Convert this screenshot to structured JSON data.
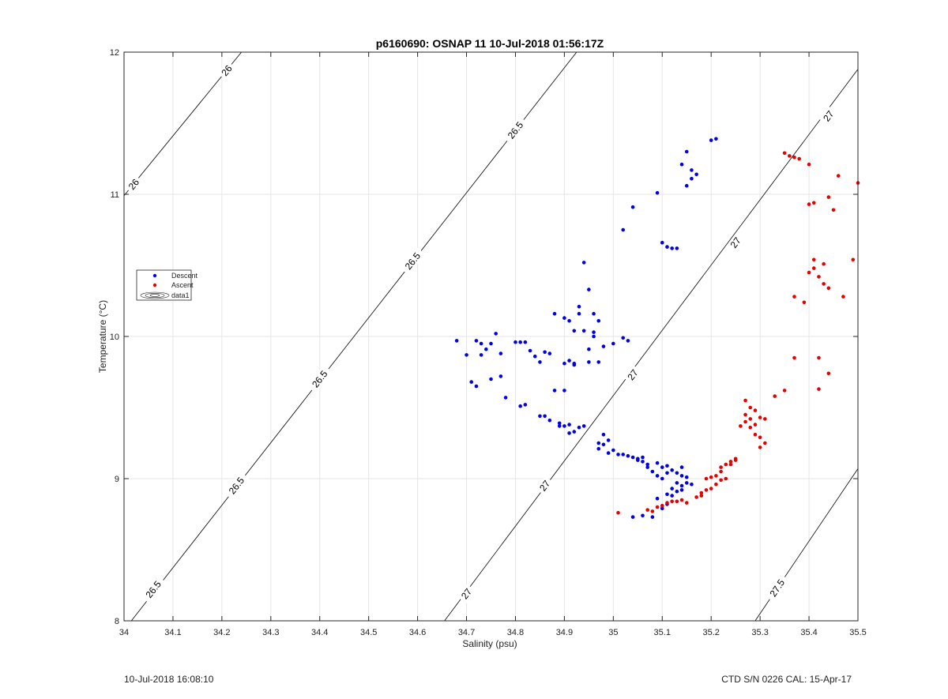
{
  "footer": {
    "left": "10-Jul-2018 16:08:10",
    "right": "CTD S/N 0226  CAL: 15-Apr-17"
  },
  "colors": {
    "descent": "#0000e6",
    "ascent": "#e60000",
    "contour": "#000000",
    "grid": "#e6e6e6",
    "axis": "#262626"
  },
  "chart_data": {
    "type": "scatter",
    "title": "p6160690: OSNAP 11 10-Jul-2018 01:56:17Z",
    "xlabel": "Salinity (psu)",
    "ylabel": "Temperature (°C)",
    "xlim": [
      34,
      35.5
    ],
    "ylim": [
      8,
      12
    ],
    "grid": true,
    "legend_position": "middle-left",
    "x_ticks": [
      "34",
      "34.1",
      "34.2",
      "34.3",
      "34.4",
      "34.5",
      "34.6",
      "34.7",
      "34.8",
      "34.9",
      "35",
      "35.1",
      "35.2",
      "35.3",
      "35.4",
      "35.5"
    ],
    "y_ticks": [
      "8",
      "9",
      "10",
      "11",
      "12"
    ],
    "legend": [
      "Descent",
      "Ascent",
      "data1"
    ],
    "contours": [
      {
        "label": "26",
        "points": [
          [
            34.0,
            10.99
          ],
          [
            34.24,
            12.0
          ]
        ],
        "label_positions": [
          [
            34.02,
            11.07
          ],
          [
            34.21,
            11.87
          ]
        ]
      },
      {
        "label": "26.5",
        "points": [
          [
            34.015,
            8.0
          ],
          [
            34.925,
            12.0
          ]
        ],
        "label_positions": [
          [
            34.06,
            8.22
          ],
          [
            34.23,
            8.95
          ],
          [
            34.4,
            9.7
          ],
          [
            34.59,
            10.53
          ],
          [
            34.8,
            11.45
          ]
        ]
      },
      {
        "label": "27",
        "points": [
          [
            34.655,
            8.0
          ],
          [
            35.5,
            11.88
          ]
        ],
        "label_positions": [
          [
            34.7,
            8.19
          ],
          [
            34.86,
            8.95
          ],
          [
            35.04,
            9.73
          ],
          [
            35.25,
            10.66
          ],
          [
            35.44,
            11.55
          ]
        ]
      },
      {
        "label": "27.5",
        "points": [
          [
            35.29,
            8.0
          ],
          [
            35.5,
            9.07
          ]
        ],
        "label_positions": [
          [
            35.335,
            8.23
          ]
        ]
      }
    ],
    "series": [
      {
        "name": "Descent",
        "color": "#0000e6",
        "points": [
          [
            34.68,
            9.97
          ],
          [
            34.7,
            9.87
          ],
          [
            34.71,
            9.68
          ],
          [
            34.72,
            9.97
          ],
          [
            34.72,
            9.65
          ],
          [
            34.73,
            9.95
          ],
          [
            34.73,
            9.87
          ],
          [
            34.74,
            9.91
          ],
          [
            34.75,
            9.7
          ],
          [
            34.75,
            9.95
          ],
          [
            34.76,
            10.02
          ],
          [
            34.77,
            9.88
          ],
          [
            34.77,
            9.72
          ],
          [
            34.78,
            9.57
          ],
          [
            34.8,
            9.96
          ],
          [
            34.81,
            9.96
          ],
          [
            34.81,
            9.51
          ],
          [
            34.82,
            9.96
          ],
          [
            34.82,
            9.52
          ],
          [
            34.83,
            9.9
          ],
          [
            34.84,
            9.86
          ],
          [
            34.85,
            9.82
          ],
          [
            34.85,
            9.44
          ],
          [
            34.86,
            9.44
          ],
          [
            34.86,
            9.89
          ],
          [
            34.87,
            9.88
          ],
          [
            34.87,
            9.41
          ],
          [
            34.88,
            9.62
          ],
          [
            34.88,
            10.16
          ],
          [
            34.89,
            9.37
          ],
          [
            34.89,
            9.39
          ],
          [
            34.9,
            10.13
          ],
          [
            34.9,
            9.81
          ],
          [
            34.9,
            9.37
          ],
          [
            34.9,
            9.62
          ],
          [
            34.91,
            10.11
          ],
          [
            34.91,
            9.32
          ],
          [
            34.91,
            9.83
          ],
          [
            34.91,
            9.38
          ],
          [
            34.92,
            10.04
          ],
          [
            34.92,
            9.81
          ],
          [
            34.92,
            9.8
          ],
          [
            34.92,
            9.33
          ],
          [
            34.93,
            10.21
          ],
          [
            34.93,
            10.16
          ],
          [
            34.93,
            9.36
          ],
          [
            34.94,
            10.52
          ],
          [
            34.94,
            10.04
          ],
          [
            34.94,
            9.37
          ],
          [
            34.95,
            10.33
          ],
          [
            34.95,
            9.82
          ],
          [
            34.95,
            9.91
          ],
          [
            34.96,
            10.16
          ],
          [
            34.96,
            10.0
          ],
          [
            34.96,
            10.03
          ],
          [
            34.97,
            10.11
          ],
          [
            34.97,
            9.82
          ],
          [
            34.97,
            9.25
          ],
          [
            34.97,
            9.21
          ],
          [
            34.98,
            9.93
          ],
          [
            34.98,
            9.31
          ],
          [
            34.98,
            9.24
          ],
          [
            34.99,
            9.27
          ],
          [
            34.99,
            9.18
          ],
          [
            35.0,
            9.95
          ],
          [
            35.0,
            9.2
          ],
          [
            35.01,
            9.17
          ],
          [
            35.02,
            10.75
          ],
          [
            35.02,
            9.99
          ],
          [
            35.02,
            9.17
          ],
          [
            35.03,
            9.97
          ],
          [
            35.03,
            9.16
          ],
          [
            35.04,
            10.91
          ],
          [
            35.04,
            9.15
          ],
          [
            35.05,
            9.14
          ],
          [
            35.05,
            9.13
          ],
          [
            35.06,
            9.15
          ],
          [
            35.06,
            9.12
          ],
          [
            35.07,
            9.1
          ],
          [
            35.07,
            9.08
          ],
          [
            35.08,
            9.05
          ],
          [
            35.09,
            11.01
          ],
          [
            35.09,
            9.11
          ],
          [
            35.09,
            9.02
          ],
          [
            35.1,
            10.66
          ],
          [
            35.1,
            9.08
          ],
          [
            35.1,
            9.0
          ],
          [
            35.11,
            10.63
          ],
          [
            35.11,
            9.09
          ],
          [
            35.11,
            9.04
          ],
          [
            35.11,
            8.89
          ],
          [
            35.12,
            10.62
          ],
          [
            35.12,
            9.06
          ],
          [
            35.12,
            8.93
          ],
          [
            35.13,
            10.62
          ],
          [
            35.13,
            9.04
          ],
          [
            35.13,
            8.97
          ],
          [
            35.14,
            11.21
          ],
          [
            35.14,
            9.08
          ],
          [
            35.14,
            9.02
          ],
          [
            35.14,
            8.95
          ],
          [
            35.15,
            11.3
          ],
          [
            35.15,
            11.06
          ],
          [
            35.15,
            9.01
          ],
          [
            35.15,
            8.97
          ],
          [
            35.16,
            11.11
          ],
          [
            35.16,
            11.17
          ],
          [
            35.16,
            8.96
          ],
          [
            35.17,
            11.14
          ],
          [
            35.2,
            11.38
          ],
          [
            35.21,
            11.39
          ],
          [
            35.04,
            8.73
          ],
          [
            35.06,
            8.74
          ],
          [
            35.08,
            8.73
          ],
          [
            35.09,
            8.86
          ],
          [
            35.1,
            8.79
          ],
          [
            35.11,
            8.82
          ],
          [
            35.12,
            8.88
          ],
          [
            35.13,
            8.91
          ],
          [
            35.14,
            8.92
          ]
        ]
      },
      {
        "name": "Ascent",
        "color": "#e60000",
        "points": [
          [
            35.01,
            8.76
          ],
          [
            35.07,
            8.78
          ],
          [
            35.08,
            8.77
          ],
          [
            35.09,
            8.8
          ],
          [
            35.1,
            8.81
          ],
          [
            35.11,
            8.83
          ],
          [
            35.12,
            8.84
          ],
          [
            35.13,
            8.84
          ],
          [
            35.14,
            8.85
          ],
          [
            35.15,
            8.83
          ],
          [
            35.17,
            8.87
          ],
          [
            35.18,
            8.88
          ],
          [
            35.18,
            8.9
          ],
          [
            35.19,
            8.92
          ],
          [
            35.19,
            9.0
          ],
          [
            35.2,
            9.01
          ],
          [
            35.2,
            8.93
          ],
          [
            35.21,
            9.02
          ],
          [
            35.21,
            8.96
          ],
          [
            35.22,
            9.05
          ],
          [
            35.22,
            8.99
          ],
          [
            35.22,
            9.08
          ],
          [
            35.23,
            9.0
          ],
          [
            35.23,
            9.1
          ],
          [
            35.24,
            9.12
          ],
          [
            35.24,
            9.1
          ],
          [
            35.25,
            9.13
          ],
          [
            35.25,
            9.14
          ],
          [
            35.26,
            9.37
          ],
          [
            35.27,
            9.4
          ],
          [
            35.27,
            9.55
          ],
          [
            35.27,
            9.45
          ],
          [
            35.28,
            9.36
          ],
          [
            35.28,
            9.5
          ],
          [
            35.28,
            9.42
          ],
          [
            35.29,
            9.31
          ],
          [
            35.29,
            9.48
          ],
          [
            35.29,
            9.38
          ],
          [
            35.3,
            9.29
          ],
          [
            35.3,
            9.43
          ],
          [
            35.3,
            9.22
          ],
          [
            35.31,
            9.25
          ],
          [
            35.31,
            9.42
          ],
          [
            35.33,
            9.58
          ],
          [
            35.35,
            9.62
          ],
          [
            35.35,
            11.29
          ],
          [
            35.36,
            11.27
          ],
          [
            35.37,
            11.26
          ],
          [
            35.37,
            10.28
          ],
          [
            35.37,
            9.85
          ],
          [
            35.38,
            11.25
          ],
          [
            35.39,
            10.24
          ],
          [
            35.4,
            11.21
          ],
          [
            35.4,
            10.93
          ],
          [
            35.4,
            10.45
          ],
          [
            35.41,
            10.94
          ],
          [
            35.41,
            10.48
          ],
          [
            35.41,
            10.54
          ],
          [
            35.42,
            10.42
          ],
          [
            35.42,
            9.85
          ],
          [
            35.42,
            9.63
          ],
          [
            35.43,
            10.51
          ],
          [
            35.43,
            10.37
          ],
          [
            35.44,
            10.98
          ],
          [
            35.44,
            9.74
          ],
          [
            35.44,
            10.34
          ],
          [
            35.45,
            10.89
          ],
          [
            35.46,
            11.13
          ],
          [
            35.47,
            10.28
          ],
          [
            35.49,
            10.54
          ],
          [
            35.5,
            11.08
          ]
        ]
      }
    ]
  }
}
